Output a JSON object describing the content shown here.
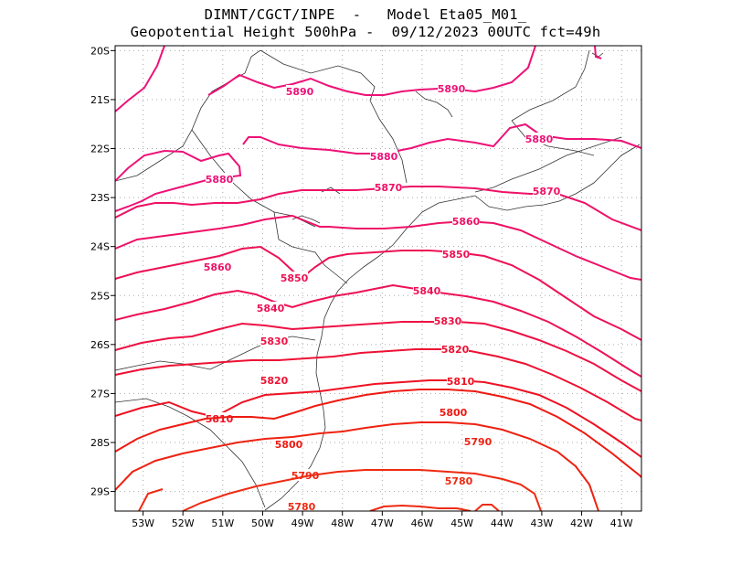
{
  "header": {
    "line1": "DIMNT/CGCT/INPE  -   Model Eta05_M01_",
    "line2": "Geopotential Height 500hPa -  09/12/2023 00UTC fct=49h"
  },
  "axes": {
    "lon_labels": [
      "53W",
      "52W",
      "51W",
      "50W",
      "49W",
      "48W",
      "47W",
      "46W",
      "45W",
      "44W",
      "43W",
      "42W",
      "41W"
    ],
    "lat_labels": [
      "20S",
      "21S",
      "22S",
      "23S",
      "24S",
      "25S",
      "26S",
      "27S",
      "28S",
      "29S"
    ]
  },
  "chart_data": {
    "type": "contour-map",
    "variable": "Geopotential Height 500hPa",
    "model": "Eta05_M01_",
    "run": "09/12/2023 00UTC",
    "forecast": "fct=49h",
    "lon_range": [
      -53.7,
      -40.5
    ],
    "lat_range": [
      -29.4,
      -19.9
    ],
    "contours": [
      {
        "value": 5890,
        "label": "5890",
        "color": "#ee1177"
      },
      {
        "value": 5880,
        "label": "5880",
        "color": "#ee1177"
      },
      {
        "value": 5870,
        "label": "5870",
        "color": "#ee1166"
      },
      {
        "value": 5860,
        "label": "5860",
        "color": "#ee1166"
      },
      {
        "value": 5850,
        "label": "5850",
        "color": "#ee1155"
      },
      {
        "value": 5840,
        "label": "5840",
        "color": "#ee1155"
      },
      {
        "value": 5830,
        "label": "5830",
        "color": "#ee1144"
      },
      {
        "value": 5820,
        "label": "5820",
        "color": "#ee1133"
      },
      {
        "value": 5810,
        "label": "5810",
        "color": "#ee1122"
      },
      {
        "value": 5800,
        "label": "5800",
        "color": "#ee1a11"
      },
      {
        "value": 5790,
        "label": "5790",
        "color": "#ee2211"
      },
      {
        "value": 5780,
        "label": "5780",
        "color": "#ee2a11"
      }
    ]
  }
}
